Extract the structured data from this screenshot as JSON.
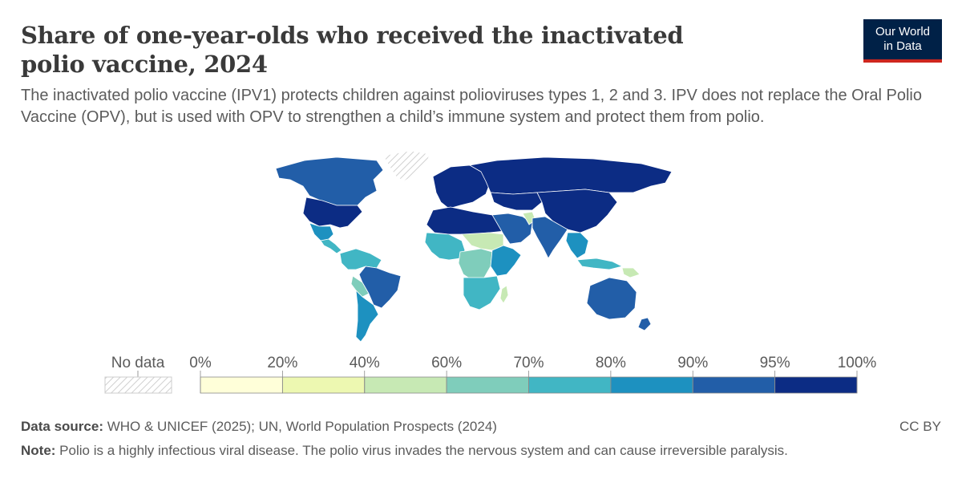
{
  "header": {
    "title": "Share of one-year-olds who received the inactivated polio vaccine, 2024",
    "subtitle": "The inactivated polio vaccine (IPV1) protects children against polioviruses types 1, 2 and 3. IPV does not replace the Oral Polio Vaccine (OPV), but is used with OPV to strengthen a child’s immune system and protect them from polio.",
    "logo_line1": "Our World",
    "logo_line2": "in Data"
  },
  "colors": {
    "no_data_hatch": "#cfcfcf",
    "bin_0_20": "#ffffd9",
    "bin_20_40": "#edf8b1",
    "bin_40_60": "#c7e9b4",
    "bin_60_70": "#7fcdbb",
    "bin_70_80": "#41b6c4",
    "bin_80_90": "#1d91c0",
    "bin_90_95": "#225ea8",
    "bin_95_100": "#0c2c84",
    "brand_navy": "#002147",
    "brand_red": "#ce261e"
  },
  "legend": {
    "no_data_label": "No data",
    "ticks": [
      "0%",
      "20%",
      "40%",
      "60%",
      "70%",
      "80%",
      "90%",
      "95%",
      "100%"
    ],
    "bins": [
      "bin_0_20",
      "bin_20_40",
      "bin_40_60",
      "bin_60_70",
      "bin_70_80",
      "bin_80_90",
      "bin_90_95",
      "bin_95_100"
    ]
  },
  "map": {
    "regions": [
      {
        "name": "North America (north)",
        "bin": "bin_90_95"
      },
      {
        "name": "Greenland",
        "bin": "no_data_hatch"
      },
      {
        "name": "United States",
        "bin": "bin_95_100"
      },
      {
        "name": "Mexico",
        "bin": "bin_80_90"
      },
      {
        "name": "Central America",
        "bin": "bin_70_80"
      },
      {
        "name": "South America (north)",
        "bin": "bin_70_80"
      },
      {
        "name": "Brazil",
        "bin": "bin_90_95"
      },
      {
        "name": "Bolivia",
        "bin": "bin_60_70"
      },
      {
        "name": "Southern Cone",
        "bin": "bin_80_90"
      },
      {
        "name": "Europe",
        "bin": "bin_95_100"
      },
      {
        "name": "Russia",
        "bin": "bin_95_100"
      },
      {
        "name": "North Africa",
        "bin": "bin_95_100"
      },
      {
        "name": "West Africa",
        "bin": "bin_70_80"
      },
      {
        "name": "Sahel",
        "bin": "bin_40_60"
      },
      {
        "name": "Central Africa",
        "bin": "bin_60_70"
      },
      {
        "name": "East Africa",
        "bin": "bin_80_90"
      },
      {
        "name": "Southern Africa",
        "bin": "bin_70_80"
      },
      {
        "name": "Madagascar",
        "bin": "bin_40_60"
      },
      {
        "name": "Middle East",
        "bin": "bin_90_95"
      },
      {
        "name": "Afghanistan",
        "bin": "bin_40_60"
      },
      {
        "name": "Central Asia",
        "bin": "bin_95_100"
      },
      {
        "name": "China",
        "bin": "bin_95_100"
      },
      {
        "name": "India",
        "bin": "bin_90_95"
      },
      {
        "name": "Southeast Asia",
        "bin": "bin_80_90"
      },
      {
        "name": "Indonesia",
        "bin": "bin_70_80"
      },
      {
        "name": "Papua New Guinea",
        "bin": "bin_40_60"
      },
      {
        "name": "Australia",
        "bin": "bin_90_95"
      },
      {
        "name": "New Zealand",
        "bin": "bin_90_95"
      }
    ]
  },
  "footer": {
    "source_label": "Data source:",
    "source_text": " WHO & UNICEF (2025); UN, World Population Prospects (2024)",
    "note_label": "Note:",
    "note_text": " Polio is a highly infectious viral disease. The polio virus invades the nervous system and can cause irreversible paralysis.",
    "license": "CC BY"
  }
}
